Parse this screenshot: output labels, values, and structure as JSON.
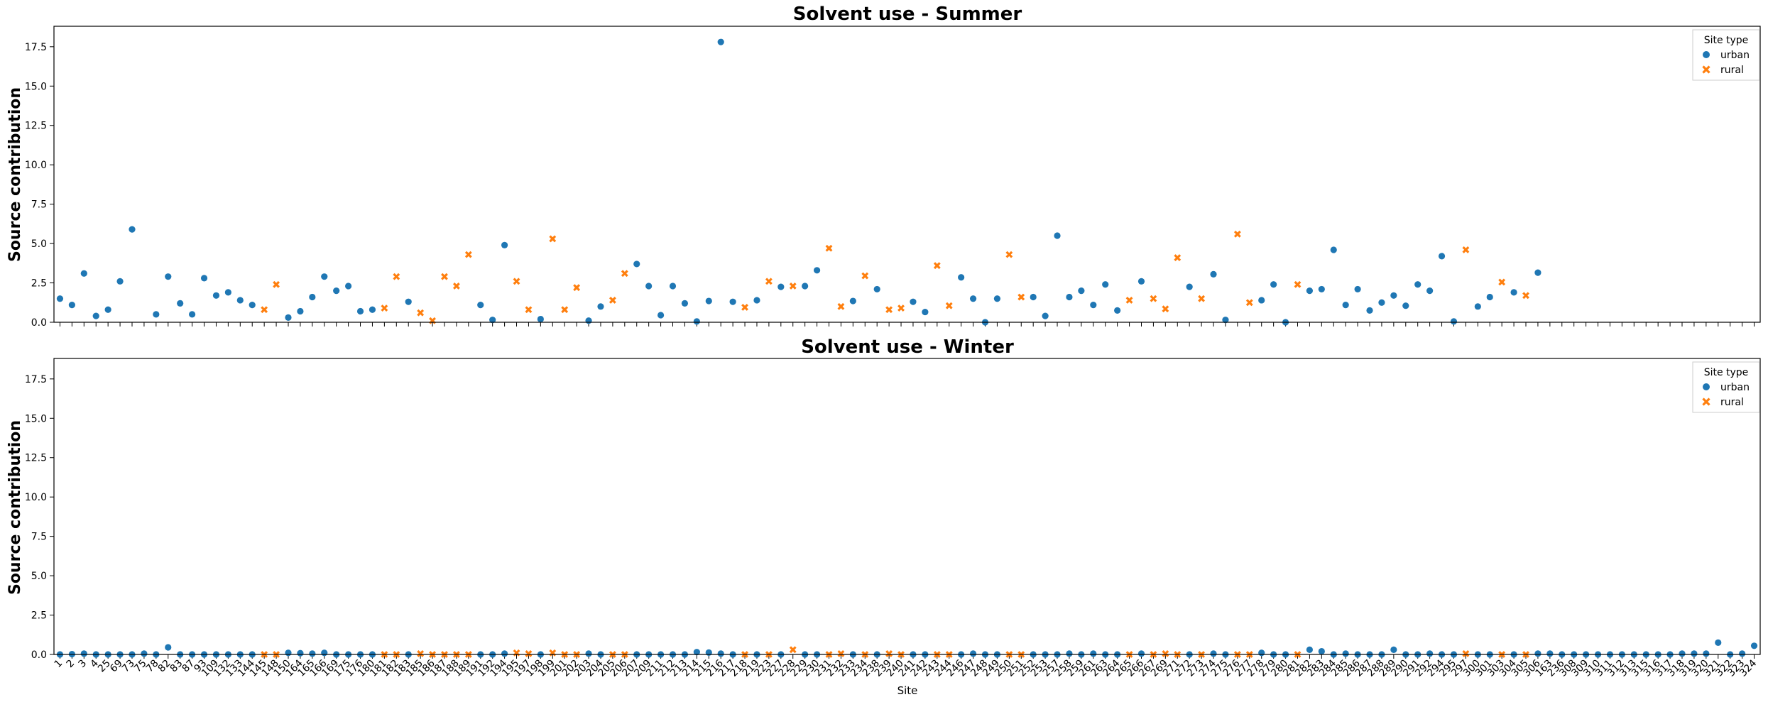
{
  "colors": {
    "urban": "#1f77b4",
    "rural": "#ff7f0e"
  },
  "sites": [
    "1",
    "2",
    "3",
    "4",
    "25",
    "69",
    "73",
    "75",
    "78",
    "82",
    "83",
    "87",
    "93",
    "109",
    "132",
    "133",
    "144",
    "145",
    "148",
    "150",
    "164",
    "165",
    "166",
    "169",
    "175",
    "176",
    "180",
    "181",
    "182",
    "183",
    "185",
    "186",
    "187",
    "188",
    "189",
    "191",
    "192",
    "194",
    "195",
    "197",
    "198",
    "199",
    "201",
    "202",
    "203",
    "204",
    "205",
    "206",
    "207",
    "209",
    "211",
    "212",
    "213",
    "214",
    "215",
    "216",
    "217",
    "218",
    "219",
    "223",
    "227",
    "228",
    "229",
    "230",
    "231",
    "232",
    "233",
    "234",
    "238",
    "239",
    "240",
    "241",
    "242",
    "243",
    "244",
    "246",
    "247",
    "248",
    "249",
    "250",
    "251",
    "252",
    "253",
    "257",
    "258",
    "259",
    "261",
    "263",
    "264",
    "265",
    "266",
    "267",
    "269",
    "271",
    "272",
    "273",
    "274",
    "275",
    "276",
    "277",
    "278",
    "279",
    "280",
    "281",
    "282",
    "283",
    "284",
    "285",
    "286",
    "287",
    "288",
    "289",
    "290",
    "291",
    "292",
    "294",
    "295",
    "297",
    "300",
    "301",
    "303",
    "304",
    "305",
    "306",
    "163",
    "236",
    "308",
    "309",
    "310",
    "311",
    "312",
    "313",
    "315",
    "316",
    "317",
    "318",
    "319",
    "320",
    "321",
    "322",
    "323",
    "324"
  ],
  "site_types": [
    "urban",
    "urban",
    "urban",
    "urban",
    "urban",
    "urban",
    "urban",
    "urban",
    "urban",
    "urban",
    "urban",
    "urban",
    "urban",
    "urban",
    "urban",
    "urban",
    "urban",
    "rural",
    "rural",
    "urban",
    "urban",
    "urban",
    "urban",
    "urban",
    "urban",
    "urban",
    "urban",
    "rural",
    "rural",
    "urban",
    "rural",
    "rural",
    "rural",
    "rural",
    "rural",
    "urban",
    "urban",
    "urban",
    "rural",
    "rural",
    "urban",
    "rural",
    "rural",
    "rural",
    "urban",
    "urban",
    "rural",
    "rural",
    "urban",
    "urban",
    "urban",
    "urban",
    "urban",
    "urban",
    "urban",
    "urban",
    "urban",
    "rural",
    "urban",
    "rural",
    "urban",
    "rural",
    "urban",
    "urban",
    "rural",
    "rural",
    "urban",
    "rural",
    "urban",
    "rural",
    "rural",
    "urban",
    "urban",
    "rural",
    "rural",
    "urban",
    "urban",
    "urban",
    "urban",
    "rural",
    "rural",
    "urban",
    "urban",
    "urban",
    "urban",
    "urban",
    "urban",
    "urban",
    "urban",
    "rural",
    "urban",
    "rural",
    "rural",
    "rural",
    "urban",
    "rural",
    "urban",
    "urban",
    "rural",
    "rural",
    "urban",
    "urban",
    "urban",
    "rural",
    "urban",
    "urban",
    "urban",
    "urban",
    "urban",
    "urban",
    "urban",
    "urban",
    "urban",
    "urban",
    "urban",
    "urban",
    "urban",
    "rural",
    "urban",
    "urban",
    "rural",
    "urban",
    "rural",
    "urban",
    "urban",
    "urban",
    "urban",
    "urban",
    "urban",
    "urban",
    "urban",
    "urban",
    "urban",
    "urban",
    "urban",
    "urban",
    "urban",
    "urban",
    "urban",
    "urban",
    "urban",
    "urban",
    "urban",
    "urban"
  ],
  "chart_data": [
    {
      "type": "scatter",
      "title": "Solvent use - Summer",
      "ylabel": "Source contribution",
      "xlabel": "",
      "ylim": [
        0,
        18.8
      ],
      "yticks": [
        "0.0",
        "2.5",
        "5.0",
        "7.5",
        "10.0",
        "12.5",
        "15.0",
        "17.5"
      ],
      "legend": {
        "title": "Site type",
        "entries": [
          "urban",
          "rural"
        ],
        "position": "top-right"
      },
      "values": [
        1.5,
        1.1,
        3.1,
        0.4,
        0.8,
        2.6,
        5.9,
        null,
        0.5,
        2.9,
        1.2,
        0.5,
        2.8,
        1.7,
        1.9,
        1.4,
        1.1,
        0.8,
        2.4,
        0.3,
        0.7,
        1.6,
        2.9,
        2.0,
        2.3,
        0.7,
        0.8,
        0.9,
        2.9,
        1.3,
        0.6,
        0.1,
        2.9,
        2.3,
        4.3,
        1.1,
        0.15,
        4.9,
        2.6,
        0.8,
        0.2,
        5.3,
        0.8,
        2.2,
        0.1,
        1.0,
        1.4,
        3.1,
        3.7,
        2.3,
        0.45,
        2.3,
        1.2,
        0.05,
        1.35,
        17.8,
        1.3,
        0.95,
        1.4,
        2.6,
        2.25,
        2.3,
        2.3,
        3.3,
        4.7,
        1.0,
        1.35,
        2.95,
        2.1,
        0.8,
        0.9,
        1.3,
        0.65,
        3.6,
        1.05,
        2.85,
        1.5,
        0.0,
        1.5,
        4.3,
        1.6,
        1.6,
        0.4,
        5.5,
        1.6,
        2.0,
        1.1,
        2.4,
        0.75,
        1.4,
        2.6,
        1.5,
        0.85,
        4.1,
        2.25,
        1.5,
        3.05,
        0.15,
        5.6,
        1.25,
        1.4,
        2.4,
        0.0,
        2.4,
        2.0,
        2.1,
        4.6,
        1.1,
        2.1,
        0.75,
        1.25,
        1.7,
        1.05,
        2.4,
        2.0,
        4.2,
        0.05,
        4.6,
        1.0,
        1.6,
        2.55,
        1.9,
        1.7,
        3.15,
        null,
        null,
        null,
        null,
        null,
        null,
        null,
        null,
        null,
        null,
        null,
        null,
        null,
        null,
        null,
        null,
        null,
        null
      ]
    },
    {
      "type": "scatter",
      "title": "Solvent use - Winter",
      "ylabel": "Source contribution",
      "xlabel": "Site",
      "ylim": [
        0,
        18.8
      ],
      "yticks": [
        "0.0",
        "2.5",
        "5.0",
        "7.5",
        "10.0",
        "12.5",
        "15.0",
        "17.5"
      ],
      "legend": {
        "title": "Site type",
        "entries": [
          "urban",
          "rural"
        ],
        "position": "top-right"
      },
      "values": [
        0.0,
        0.02,
        0.05,
        0.0,
        0.0,
        0.0,
        0.0,
        0.05,
        0.0,
        0.45,
        0.0,
        0.0,
        0.0,
        0.0,
        0.0,
        0.0,
        0.0,
        0.0,
        0.0,
        0.1,
        0.08,
        0.05,
        0.1,
        0.0,
        0.0,
        0.0,
        0.0,
        0.0,
        0.0,
        0.0,
        0.05,
        0.0,
        0.0,
        0.0,
        0.0,
        0.0,
        0.0,
        0.05,
        0.1,
        0.05,
        0.0,
        0.1,
        0.0,
        0.0,
        0.05,
        0.0,
        0.0,
        0.0,
        0.0,
        0.0,
        0.0,
        0.0,
        0.0,
        0.15,
        0.12,
        0.05,
        0.0,
        0.0,
        0.0,
        0.0,
        0.0,
        0.3,
        0.0,
        0.0,
        0.0,
        0.05,
        0.0,
        0.0,
        0.0,
        0.05,
        0.0,
        0.0,
        0.0,
        0.0,
        0.0,
        0.0,
        0.05,
        0.0,
        0.0,
        0.0,
        0.0,
        0.0,
        0.0,
        0.0,
        0.05,
        0.0,
        0.05,
        0.0,
        0.0,
        0.0,
        0.05,
        0.0,
        0.05,
        0.0,
        0.0,
        0.0,
        0.05,
        0.0,
        0.0,
        0.0,
        0.1,
        0.0,
        0.0,
        0.0,
        0.3,
        0.2,
        0.0,
        0.05,
        0.0,
        0.0,
        0.0,
        0.3,
        0.0,
        0.0,
        0.05,
        0.0,
        0.0,
        0.05,
        0.0,
        0.0,
        0.0,
        0.0,
        0.0,
        0.05,
        0.05,
        0.0,
        0.0,
        0.0,
        0.0,
        0.0,
        0.0,
        0.0,
        0.0,
        0.0,
        0.0,
        0.05,
        0.05,
        0.05,
        0.75,
        0.0,
        0.05,
        0.55
      ]
    }
  ]
}
